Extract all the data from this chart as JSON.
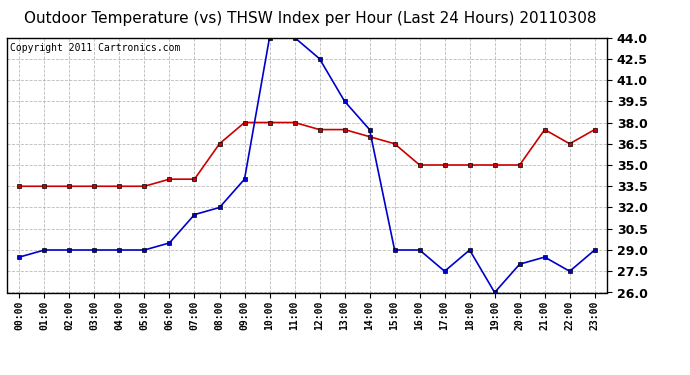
{
  "title": "Outdoor Temperature (vs) THSW Index per Hour (Last 24 Hours) 20110308",
  "copyright": "Copyright 2011 Cartronics.com",
  "hours": [
    "00:00",
    "01:00",
    "02:00",
    "03:00",
    "04:00",
    "05:00",
    "06:00",
    "07:00",
    "08:00",
    "09:00",
    "10:00",
    "11:00",
    "12:00",
    "13:00",
    "14:00",
    "15:00",
    "16:00",
    "17:00",
    "18:00",
    "19:00",
    "20:00",
    "21:00",
    "22:00",
    "23:00"
  ],
  "temp_red": [
    33.5,
    33.5,
    33.5,
    33.5,
    33.5,
    33.5,
    34.0,
    34.0,
    36.5,
    38.0,
    38.0,
    38.0,
    37.5,
    37.5,
    37.0,
    36.5,
    35.0,
    35.0,
    35.0,
    35.0,
    35.0,
    37.5,
    36.5,
    37.5
  ],
  "thsw_blue": [
    28.5,
    29.0,
    29.0,
    29.0,
    29.0,
    29.0,
    29.5,
    31.5,
    32.0,
    34.0,
    44.0,
    44.0,
    42.5,
    39.5,
    37.5,
    29.0,
    29.0,
    27.5,
    29.0,
    26.0,
    28.0,
    28.5,
    27.5,
    29.0
  ],
  "ylim": [
    26.0,
    44.0
  ],
  "yticks": [
    26.0,
    27.5,
    29.0,
    30.5,
    32.0,
    33.5,
    35.0,
    36.5,
    38.0,
    39.5,
    41.0,
    42.5,
    44.0
  ],
  "red_color": "#cc0000",
  "blue_color": "#0000cc",
  "grid_color": "#aaaaaa",
  "bg_color": "#ffffff",
  "title_fontsize": 11,
  "copyright_fontsize": 7,
  "tick_fontsize": 9
}
